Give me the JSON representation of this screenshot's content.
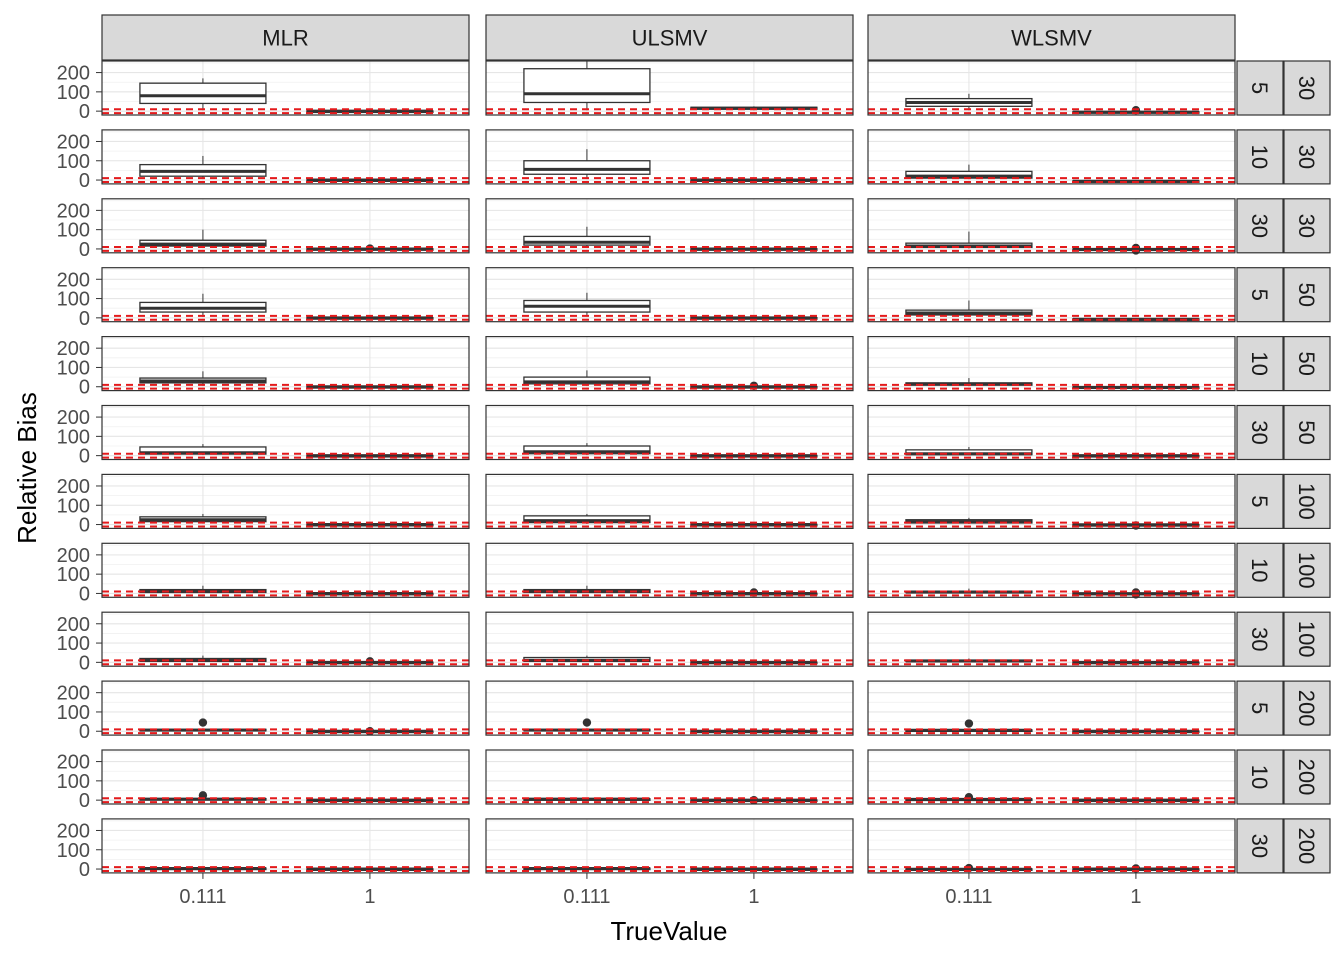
{
  "chart_data": {
    "type": "box",
    "xlabel": "TrueValue",
    "ylabel": "Relative Bias",
    "x_categories": [
      "0.111",
      "1"
    ],
    "y_ticks": [
      0,
      100,
      200
    ],
    "ylim": [
      -20,
      260
    ],
    "facet_columns": [
      "MLR",
      "ULSMV",
      "WLSMV"
    ],
    "facet_rows": [
      {
        "inner": "5",
        "outer": "30"
      },
      {
        "inner": "10",
        "outer": "30"
      },
      {
        "inner": "30",
        "outer": "30"
      },
      {
        "inner": "5",
        "outer": "50"
      },
      {
        "inner": "10",
        "outer": "50"
      },
      {
        "inner": "30",
        "outer": "50"
      },
      {
        "inner": "5",
        "outer": "100"
      },
      {
        "inner": "10",
        "outer": "100"
      },
      {
        "inner": "30",
        "outer": "100"
      },
      {
        "inner": "5",
        "outer": "200"
      },
      {
        "inner": "10",
        "outer": "200"
      },
      {
        "inner": "30",
        "outer": "200"
      }
    ],
    "reference_lines": {
      "y": [
        -10,
        10
      ],
      "style": "dashed",
      "color": "#e41a1c"
    },
    "grid": true,
    "boxes": [
      [
        [
          {
            "low": 5,
            "q1": 40,
            "median": 80,
            "q3": 145,
            "high": 170,
            "outliers": []
          },
          {
            "low": -2,
            "q1": -1,
            "median": 0,
            "q3": 1,
            "high": 2,
            "outliers": []
          }
        ],
        [
          {
            "low": 10,
            "q1": 20,
            "median": 45,
            "q3": 80,
            "high": 125,
            "outliers": []
          },
          {
            "low": -2,
            "q1": -1,
            "median": 0,
            "q3": 1,
            "high": 2,
            "outliers": []
          }
        ],
        [
          {
            "low": 5,
            "q1": 15,
            "median": 25,
            "q3": 45,
            "high": 100,
            "outliers": []
          },
          {
            "low": -3,
            "q1": -1,
            "median": 0,
            "q3": 1,
            "high": 3,
            "outliers": [
              2
            ]
          }
        ],
        [
          {
            "low": 5,
            "q1": 30,
            "median": 50,
            "q3": 80,
            "high": 125,
            "outliers": []
          },
          {
            "low": -2,
            "q1": -1,
            "median": 0,
            "q3": 1,
            "high": 2,
            "outliers": []
          }
        ],
        [
          {
            "low": 5,
            "q1": 20,
            "median": 30,
            "q3": 45,
            "high": 80,
            "outliers": []
          },
          {
            "low": -2,
            "q1": -1,
            "median": 0,
            "q3": 1,
            "high": 2,
            "outliers": []
          }
        ],
        [
          {
            "low": 3,
            "q1": 8,
            "median": 15,
            "q3": 45,
            "high": 60,
            "outliers": []
          },
          {
            "low": -2,
            "q1": -1,
            "median": 0,
            "q3": 1,
            "high": 2,
            "outliers": []
          }
        ],
        [
          {
            "low": 5,
            "q1": 15,
            "median": 25,
            "q3": 40,
            "high": 55,
            "outliers": []
          },
          {
            "low": -2,
            "q1": -1,
            "median": 0,
            "q3": 1,
            "high": 2,
            "outliers": []
          }
        ],
        [
          {
            "low": 3,
            "q1": 5,
            "median": 10,
            "q3": 20,
            "high": 40,
            "outliers": []
          },
          {
            "low": -2,
            "q1": -1,
            "median": 0,
            "q3": 1,
            "high": 2,
            "outliers": []
          }
        ],
        [
          {
            "low": 3,
            "q1": 5,
            "median": 10,
            "q3": 20,
            "high": 35,
            "outliers": []
          },
          {
            "low": -2,
            "q1": -1,
            "median": 0,
            "q3": 1,
            "high": 2,
            "outliers": [
              5
            ]
          }
        ],
        [
          {
            "low": 3,
            "q1": 4,
            "median": 6,
            "q3": 10,
            "high": 15,
            "outliers": [
              45
            ]
          },
          {
            "low": -2,
            "q1": -1,
            "median": 0,
            "q3": 1,
            "high": 2,
            "outliers": [
              0
            ]
          }
        ],
        [
          {
            "low": 2,
            "q1": 3,
            "median": 5,
            "q3": 8,
            "high": 12,
            "outliers": [
              25
            ]
          },
          {
            "low": -2,
            "q1": -1,
            "median": 0,
            "q3": 1,
            "high": 2,
            "outliers": []
          }
        ],
        [
          {
            "low": 1,
            "q1": 2,
            "median": 3,
            "q3": 5,
            "high": 8,
            "outliers": []
          },
          {
            "low": -2,
            "q1": -1,
            "median": 0,
            "q3": 1,
            "high": 2,
            "outliers": []
          }
        ]
      ],
      [
        [
          {
            "low": 5,
            "q1": 45,
            "median": 90,
            "q3": 220,
            "high": 260,
            "outliers": []
          },
          {
            "low": 5,
            "q1": 10,
            "median": 15,
            "q3": 20,
            "high": 25,
            "outliers": []
          }
        ],
        [
          {
            "low": 10,
            "q1": 30,
            "median": 55,
            "q3": 100,
            "high": 160,
            "outliers": []
          },
          {
            "low": -2,
            "q1": -1,
            "median": 0,
            "q3": 1,
            "high": 2,
            "outliers": []
          }
        ],
        [
          {
            "low": 5,
            "q1": 20,
            "median": 35,
            "q3": 65,
            "high": 115,
            "outliers": []
          },
          {
            "low": -2,
            "q1": -1,
            "median": 0,
            "q3": 1,
            "high": 2,
            "outliers": []
          }
        ],
        [
          {
            "low": 10,
            "q1": 30,
            "median": 60,
            "q3": 90,
            "high": 130,
            "outliers": []
          },
          {
            "low": -2,
            "q1": -1,
            "median": 0,
            "q3": 1,
            "high": 2,
            "outliers": []
          }
        ],
        [
          {
            "low": 5,
            "q1": 15,
            "median": 25,
            "q3": 50,
            "high": 85,
            "outliers": []
          },
          {
            "low": -2,
            "q1": -1,
            "median": 0,
            "q3": 1,
            "high": 2,
            "outliers": [
              5
            ]
          }
        ],
        [
          {
            "low": 3,
            "q1": 10,
            "median": 20,
            "q3": 50,
            "high": 65,
            "outliers": []
          },
          {
            "low": -2,
            "q1": -1,
            "median": 0,
            "q3": 1,
            "high": 2,
            "outliers": []
          }
        ],
        [
          {
            "low": 3,
            "q1": 10,
            "median": 20,
            "q3": 45,
            "high": 55,
            "outliers": []
          },
          {
            "low": -2,
            "q1": -1,
            "median": 0,
            "q3": 1,
            "high": 2,
            "outliers": []
          }
        ],
        [
          {
            "low": 3,
            "q1": 5,
            "median": 10,
            "q3": 20,
            "high": 40,
            "outliers": []
          },
          {
            "low": -2,
            "q1": -1,
            "median": 0,
            "q3": 1,
            "high": 2,
            "outliers": [
              5
            ]
          }
        ],
        [
          {
            "low": 3,
            "q1": 5,
            "median": 10,
            "q3": 25,
            "high": 35,
            "outliers": []
          },
          {
            "low": -2,
            "q1": -1,
            "median": 0,
            "q3": 1,
            "high": 2,
            "outliers": []
          }
        ],
        [
          {
            "low": 3,
            "q1": 4,
            "median": 6,
            "q3": 10,
            "high": 15,
            "outliers": [
              45
            ]
          },
          {
            "low": -2,
            "q1": -1,
            "median": 0,
            "q3": 1,
            "high": 2,
            "outliers": []
          }
        ],
        [
          {
            "low": 2,
            "q1": 3,
            "median": 5,
            "q3": 7,
            "high": 10,
            "outliers": []
          },
          {
            "low": -2,
            "q1": -1,
            "median": 0,
            "q3": 1,
            "high": 2,
            "outliers": [
              0
            ]
          }
        ],
        [
          {
            "low": 1,
            "q1": 2,
            "median": 3,
            "q3": 5,
            "high": 8,
            "outliers": []
          },
          {
            "low": -2,
            "q1": -1,
            "median": 0,
            "q3": 1,
            "high": 2,
            "outliers": []
          }
        ]
      ],
      [
        [
          {
            "low": 5,
            "q1": 25,
            "median": 45,
            "q3": 65,
            "high": 90,
            "outliers": []
          },
          {
            "low": -10,
            "q1": -8,
            "median": -5,
            "q3": -3,
            "high": 0,
            "outliers": [
              5
            ]
          }
        ],
        [
          {
            "low": 5,
            "q1": 10,
            "median": 20,
            "q3": 45,
            "high": 80,
            "outliers": []
          },
          {
            "low": -10,
            "q1": -9,
            "median": -6,
            "q3": -4,
            "high": -2,
            "outliers": []
          }
        ],
        [
          {
            "low": 3,
            "q1": 8,
            "median": 15,
            "q3": 30,
            "high": 90,
            "outliers": []
          },
          {
            "low": -10,
            "q1": -5,
            "median": -2,
            "q3": 0,
            "high": 2,
            "outliers": [
              5,
              -8
            ]
          }
        ],
        [
          {
            "low": 5,
            "q1": 15,
            "median": 25,
            "q3": 40,
            "high": 90,
            "outliers": []
          },
          {
            "low": -10,
            "q1": -9,
            "median": -7,
            "q3": -5,
            "high": -3,
            "outliers": []
          }
        ],
        [
          {
            "low": 3,
            "q1": 8,
            "median": 15,
            "q3": 20,
            "high": 45,
            "outliers": []
          },
          {
            "low": -8,
            "q1": -5,
            "median": -3,
            "q3": -1,
            "high": 0,
            "outliers": []
          }
        ],
        [
          {
            "low": 3,
            "q1": 5,
            "median": 10,
            "q3": 30,
            "high": 45,
            "outliers": []
          },
          {
            "low": -3,
            "q1": -2,
            "median": 0,
            "q3": 1,
            "high": 2,
            "outliers": []
          }
        ],
        [
          {
            "low": 3,
            "q1": 8,
            "median": 15,
            "q3": 25,
            "high": 35,
            "outliers": []
          },
          {
            "low": -5,
            "q1": -3,
            "median": -1,
            "q3": 0,
            "high": 1,
            "outliers": [
              -5
            ]
          }
        ],
        [
          {
            "low": 2,
            "q1": 4,
            "median": 7,
            "q3": 12,
            "high": 25,
            "outliers": []
          },
          {
            "low": -3,
            "q1": -2,
            "median": -1,
            "q3": 1,
            "high": 2,
            "outliers": [
              5,
              -5
            ]
          }
        ],
        [
          {
            "low": 2,
            "q1": 4,
            "median": 7,
            "q3": 12,
            "high": 20,
            "outliers": []
          },
          {
            "low": -2,
            "q1": -1,
            "median": 0,
            "q3": 1,
            "high": 2,
            "outliers": []
          }
        ],
        [
          {
            "low": 2,
            "q1": 3,
            "median": 5,
            "q3": 7,
            "high": 10,
            "outliers": [
              40
            ]
          },
          {
            "low": -2,
            "q1": -1,
            "median": 0,
            "q3": 1,
            "high": 2,
            "outliers": []
          }
        ],
        [
          {
            "low": 2,
            "q1": 3,
            "median": 4,
            "q3": 6,
            "high": 9,
            "outliers": [
              15
            ]
          },
          {
            "low": -2,
            "q1": -1,
            "median": 0,
            "q3": 1,
            "high": 2,
            "outliers": []
          }
        ],
        [
          {
            "low": -5,
            "q1": -3,
            "median": -1,
            "q3": 1,
            "high": 3,
            "outliers": [
              5
            ]
          },
          {
            "low": -2,
            "q1": -1,
            "median": 0,
            "q3": 1,
            "high": 2,
            "outliers": [
              3
            ]
          }
        ]
      ]
    ]
  }
}
